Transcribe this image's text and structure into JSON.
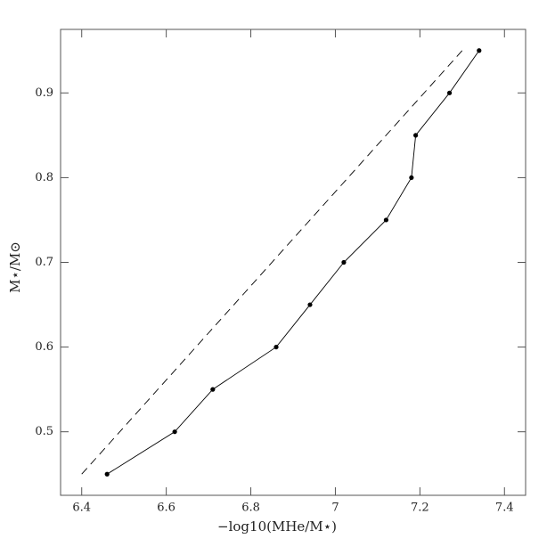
{
  "chart_data": {
    "type": "line",
    "xlabel": "−log10(MHe/M⋆)",
    "ylabel": "M⋆/M⊙",
    "series": [
      {
        "color": "#000000",
        "dash": false,
        "markers": true,
        "x": [
          6.46,
          6.62,
          6.71,
          6.86,
          6.94,
          7.02,
          7.12,
          7.18,
          7.19,
          7.27,
          7.34
        ],
        "values": [
          0.45,
          0.5,
          0.55,
          0.6,
          0.65,
          0.7,
          0.75,
          0.8,
          0.85,
          0.9,
          0.95
        ]
      },
      {
        "color": "#000000",
        "dash": true,
        "markers": false,
        "x": [
          6.4,
          7.3
        ],
        "values": [
          0.45,
          0.95
        ]
      }
    ],
    "xlim": [
      6.35,
      7.45
    ],
    "ylim": [
      0.425,
      0.975
    ],
    "xticks": [
      6.4,
      6.6,
      6.8,
      7,
      7.2,
      7.4
    ],
    "yticks": [
      0.5,
      0.6,
      0.7,
      0.8,
      0.9
    ],
    "grid": false
  }
}
